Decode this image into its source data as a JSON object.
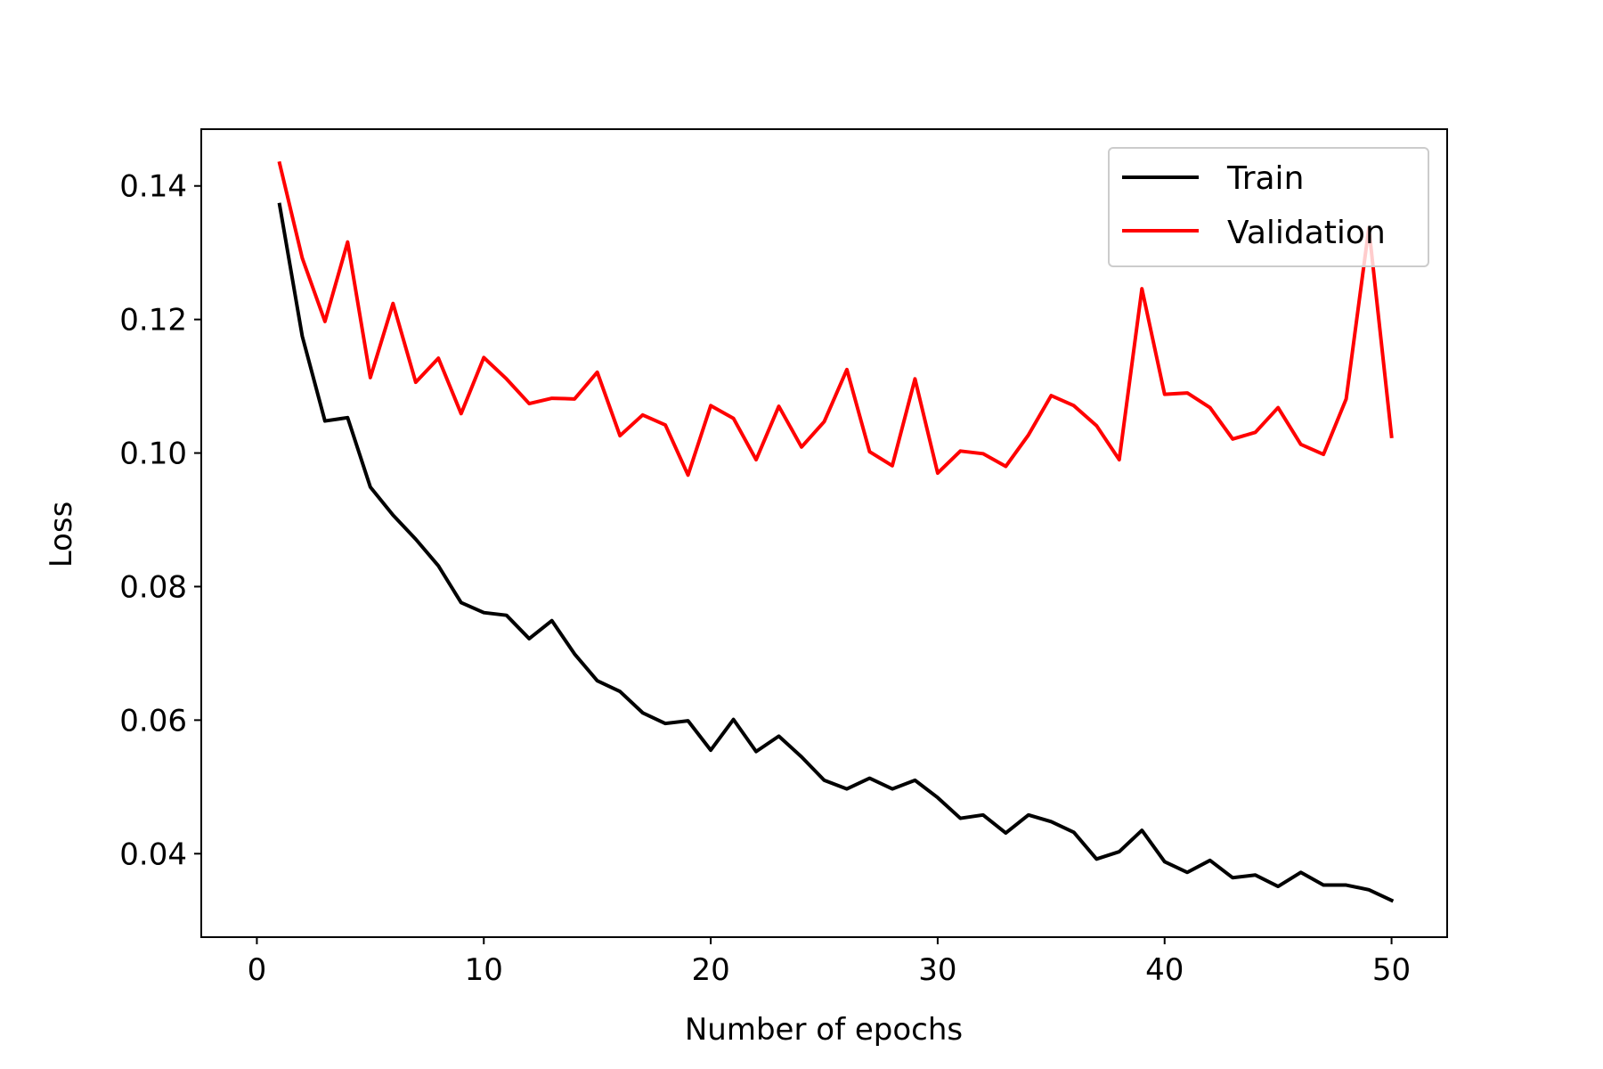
{
  "chart_data": {
    "type": "line",
    "xlabel": "Number of epochs",
    "ylabel": "Loss",
    "xlim": [
      -2.45,
      52.45
    ],
    "ylim": [
      0.0275,
      0.1485
    ],
    "xticks": [
      0,
      10,
      20,
      30,
      40,
      50
    ],
    "xtick_labels": [
      "0",
      "10",
      "20",
      "30",
      "40",
      "50"
    ],
    "yticks": [
      0.04,
      0.06,
      0.08,
      0.1,
      0.12,
      0.14
    ],
    "ytick_labels": [
      "0.04",
      "0.06",
      "0.08",
      "0.10",
      "0.12",
      "0.14"
    ],
    "grid": false,
    "legend_position": "top-right",
    "x": [
      1,
      2,
      3,
      4,
      5,
      6,
      7,
      8,
      9,
      10,
      11,
      12,
      13,
      14,
      15,
      16,
      17,
      18,
      19,
      20,
      21,
      22,
      23,
      24,
      25,
      26,
      27,
      28,
      29,
      30,
      31,
      32,
      33,
      34,
      35,
      36,
      37,
      38,
      39,
      40,
      41,
      42,
      43,
      44,
      45,
      46,
      47,
      48,
      49,
      50
    ],
    "series": [
      {
        "name": "Train",
        "color": "#000000",
        "values": [
          0.1372,
          0.1175,
          0.1048,
          0.1053,
          0.0949,
          0.0907,
          0.0871,
          0.0831,
          0.0776,
          0.0761,
          0.0757,
          0.0722,
          0.0749,
          0.0699,
          0.0659,
          0.0643,
          0.0611,
          0.0595,
          0.0599,
          0.0555,
          0.0601,
          0.0553,
          0.0576,
          0.0545,
          0.051,
          0.0497,
          0.0513,
          0.0497,
          0.051,
          0.0484,
          0.0453,
          0.0458,
          0.0431,
          0.0458,
          0.0448,
          0.0432,
          0.0392,
          0.0403,
          0.0435,
          0.0388,
          0.0372,
          0.039,
          0.0364,
          0.0368,
          0.0351,
          0.0372,
          0.0353,
          0.0353,
          0.0346,
          0.033
        ]
      },
      {
        "name": "Validation",
        "color": "#ff0000",
        "values": [
          0.1434,
          0.1292,
          0.1197,
          0.1316,
          0.1113,
          0.1224,
          0.1106,
          0.1142,
          0.1059,
          0.1143,
          0.1111,
          0.1074,
          0.1082,
          0.1081,
          0.1121,
          0.1026,
          0.1057,
          0.1042,
          0.0967,
          0.1071,
          0.1052,
          0.099,
          0.107,
          0.1009,
          0.1047,
          0.1125,
          0.1002,
          0.0981,
          0.1111,
          0.097,
          0.1003,
          0.0999,
          0.098,
          0.1027,
          0.1086,
          0.1071,
          0.1041,
          0.099,
          0.1246,
          0.1088,
          0.109,
          0.1068,
          0.1021,
          0.1031,
          0.1068,
          0.1013,
          0.0998,
          0.1081,
          0.1337,
          0.1025
        ]
      }
    ]
  }
}
